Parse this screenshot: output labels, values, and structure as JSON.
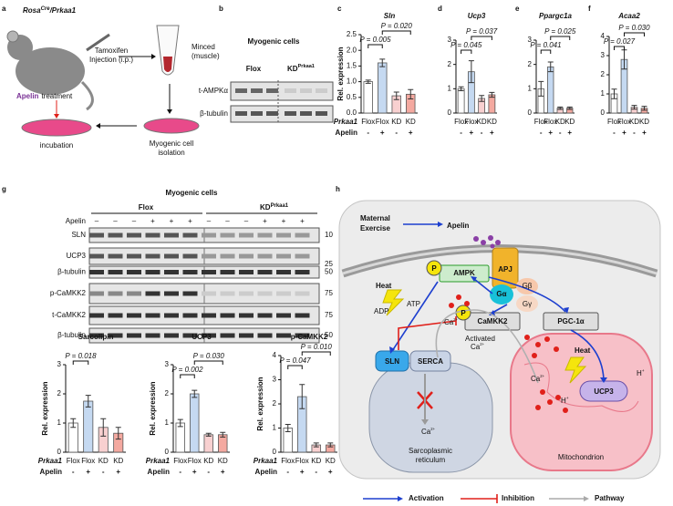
{
  "panel_labels": [
    "a",
    "b",
    "c",
    "d",
    "e",
    "f",
    "g",
    "h"
  ],
  "panel_a": {
    "title": [
      "Rosa",
      "Cre",
      "/Prkaa1"
    ],
    "injection": [
      "Tamoxifen",
      "Injection (i.p.)"
    ],
    "minced": [
      "Minced",
      "(muscle)"
    ],
    "apelin": "Apelin",
    "treatment": "treatment",
    "incubation": "incubation",
    "isolation": [
      "Myogenic cell",
      "isolation"
    ]
  },
  "panel_b": {
    "title": "Myogenic cells",
    "groups": [
      "Flox",
      "KD"
    ],
    "kd_sup": "Prkaa1",
    "rows": [
      "t-AMPKα",
      "β-tubulin"
    ]
  },
  "panel_g": {
    "title": "Myogenic cells",
    "groups": [
      "Flox",
      "KD"
    ],
    "kd_sup": "Prkaa1",
    "treatment": "Apelin",
    "lanes": [
      "–",
      "–",
      "–",
      "+",
      "+",
      "+",
      "–",
      "–",
      "–",
      "+",
      "+",
      "+"
    ],
    "rows": [
      "SLN",
      "UCP3",
      "β-tubulin",
      "p-CaMKK2",
      "t-CaMKK2",
      "β-tubulin"
    ],
    "markers": [
      "10",
      "25",
      "50",
      "75",
      "75",
      "50"
    ]
  },
  "panel_h": {
    "maternal": [
      "Maternal",
      "Exercise"
    ],
    "apelin": "Apelin",
    "apj": "APJ",
    "g_alpha": "Gα",
    "g_beta": "Gβ",
    "g_gamma": "Gγ",
    "p": "P",
    "ampk": "AMPK",
    "heat": "Heat",
    "atp": "ATP",
    "adp": "ADP",
    "camkk2": "CaMKK2",
    "pgc": "PGC-1α",
    "ca": "Ca",
    "ca_sup": "2+",
    "activated": "Activated",
    "sln": "SLN",
    "serca": "SERCA",
    "sr": [
      "Sarcoplasmic",
      "reticulum"
    ],
    "mito": "Mitochondrion",
    "ucp3": "UCP3",
    "h": "H",
    "h_sup": "+",
    "legend": [
      "Activation",
      "Inhibition",
      "Pathway"
    ]
  },
  "chart_data": [
    {
      "type": "bar",
      "title": "Sln",
      "title_italic": true,
      "ylabel": "Rel. expression",
      "row_labels": [
        "Prkaa1",
        "Apelin"
      ],
      "categories": [
        "Flox",
        "Flox",
        "KD",
        "KD"
      ],
      "apelin": [
        "-",
        "+",
        "-",
        "+"
      ],
      "values": [
        1.0,
        1.6,
        0.55,
        0.6
      ],
      "errors": [
        0.05,
        0.12,
        0.12,
        0.15
      ],
      "colors": [
        "#ffffff",
        "#c5d9f1",
        "#f8d0d0",
        "#f4a9a0"
      ],
      "ylim": [
        0,
        2.5
      ],
      "yticks": [
        {
          "value": 0,
          "label": "0.0"
        },
        0.5,
        {
          "value": 1,
          "label": "1.0"
        },
        1.5,
        {
          "value": 2,
          "label": "2.0"
        },
        2.5
      ],
      "annotations": [
        "P = 0.005",
        "P = 0.020"
      ]
    },
    {
      "type": "bar",
      "title": "Ucp3",
      "title_italic": true,
      "categories": [
        "Flox",
        "Flox",
        "KD",
        "KD"
      ],
      "apelin": [
        "-",
        "+",
        "-",
        "+"
      ],
      "values": [
        1.0,
        1.7,
        0.6,
        0.75
      ],
      "errors": [
        0.08,
        0.45,
        0.12,
        0.1
      ],
      "colors": [
        "#ffffff",
        "#c5d9f1",
        "#f8d0d0",
        "#f4a9a0"
      ],
      "ylim": [
        0,
        3
      ],
      "yticks": [
        0,
        1,
        2,
        3
      ],
      "annotations": [
        "P = 0.045",
        "P = 0.037"
      ]
    },
    {
      "type": "bar",
      "title": "Ppargc1a",
      "title_italic": true,
      "categories": [
        "Flox",
        "Flox",
        "KD",
        "KD"
      ],
      "apelin": [
        "-",
        "+",
        "-",
        "+"
      ],
      "values": [
        1.0,
        1.9,
        0.2,
        0.2
      ],
      "errors": [
        0.3,
        0.2,
        0.05,
        0.05
      ],
      "colors": [
        "#ffffff",
        "#c5d9f1",
        "#f8d0d0",
        "#f4a9a0"
      ],
      "ylim": [
        0,
        3
      ],
      "yticks": [
        0,
        1,
        2,
        3
      ],
      "annotations": [
        "P = 0.041",
        "P = 0.025"
      ]
    },
    {
      "type": "bar",
      "title": "Acaa2",
      "title_italic": true,
      "categories": [
        "Flox",
        "Flox",
        "KD",
        "KD"
      ],
      "apelin": [
        "-",
        "+",
        "-",
        "+"
      ],
      "values": [
        1.0,
        2.8,
        0.3,
        0.25
      ],
      "errors": [
        0.25,
        0.5,
        0.1,
        0.1
      ],
      "colors": [
        "#ffffff",
        "#c5d9f1",
        "#f8d0d0",
        "#f4a9a0"
      ],
      "ylim": [
        0,
        4
      ],
      "yticks": [
        0,
        1,
        2,
        3,
        4
      ],
      "annotations": [
        "P = 0.027",
        "P = 0.030"
      ]
    },
    {
      "type": "bar",
      "title": "Sarcolipin",
      "title_italic": false,
      "ylabel": "Rel. expression",
      "row_labels": [
        "Prkaa1",
        "Apelin"
      ],
      "categories": [
        "Flox",
        "Flox",
        "KD",
        "KD"
      ],
      "apelin": [
        "-",
        "+",
        "-",
        "+"
      ],
      "values": [
        1.0,
        1.75,
        0.85,
        0.65
      ],
      "errors": [
        0.15,
        0.2,
        0.3,
        0.2
      ],
      "colors": [
        "#ffffff",
        "#c5d9f1",
        "#f8d0d0",
        "#f4a9a0"
      ],
      "ylim": [
        0,
        3
      ],
      "yticks": [
        0,
        1,
        2,
        3
      ],
      "annotations": [
        "P = 0.018"
      ]
    },
    {
      "type": "bar",
      "title": "UCP3",
      "title_italic": false,
      "ylabel": "Rel. expression",
      "row_labels": [
        "Prkaa1",
        "Apelin"
      ],
      "categories": [
        "Flox",
        "Flox",
        "KD",
        "KD"
      ],
      "apelin": [
        "-",
        "+",
        "-",
        "+"
      ],
      "values": [
        1.0,
        2.0,
        0.6,
        0.6
      ],
      "errors": [
        0.12,
        0.12,
        0.05,
        0.08
      ],
      "colors": [
        "#ffffff",
        "#c5d9f1",
        "#f8d0d0",
        "#f4a9a0"
      ],
      "ylim": [
        0,
        3
      ],
      "yticks": [
        0,
        1,
        2,
        3
      ],
      "annotations": [
        "P = 0.002",
        "P = 0.030"
      ]
    },
    {
      "type": "bar",
      "title": "p-CaMKK2",
      "title_italic": false,
      "ylabel": "Rel. expression",
      "row_labels": [
        "Prkaa1",
        "Apelin"
      ],
      "categories": [
        "Flox",
        "Flox",
        "KD",
        "KD"
      ],
      "apelin": [
        "-",
        "+",
        "-",
        "+"
      ],
      "values": [
        1.0,
        2.3,
        0.3,
        0.3
      ],
      "errors": [
        0.15,
        0.5,
        0.08,
        0.08
      ],
      "colors": [
        "#ffffff",
        "#c5d9f1",
        "#f8d0d0",
        "#f4a9a0"
      ],
      "ylim": [
        0,
        4
      ],
      "yticks": [
        0,
        1,
        2,
        3,
        4
      ],
      "annotations": [
        "P = 0.047",
        "P = 0.010"
      ]
    }
  ]
}
